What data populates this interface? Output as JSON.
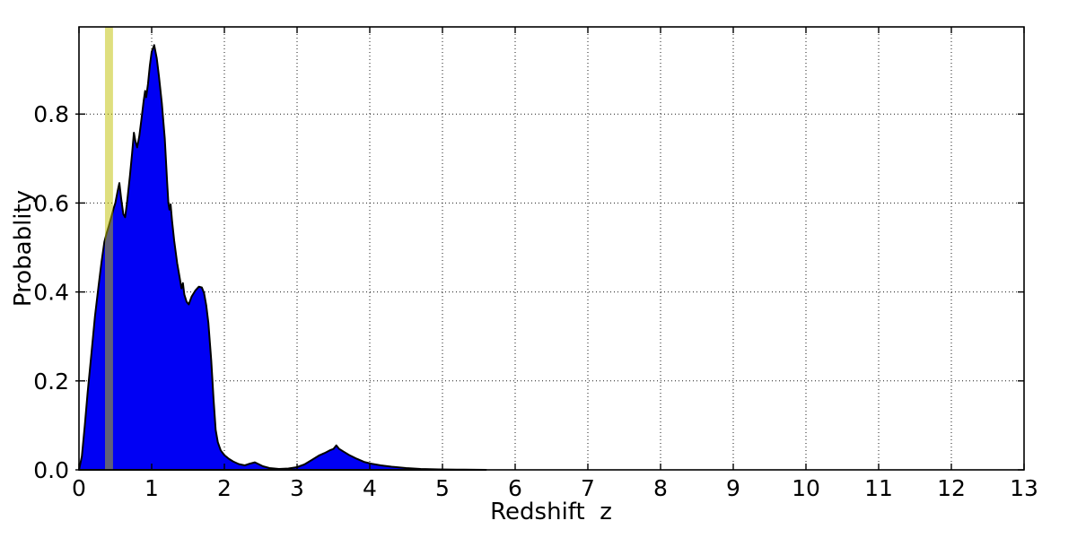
{
  "chart_data": {
    "type": "area",
    "title": "",
    "xlabel": "Redshift  z",
    "ylabel": "Probablity",
    "xlim": [
      0,
      13
    ],
    "ylim": [
      0,
      0.996
    ],
    "xticks": [
      0,
      1,
      2,
      3,
      4,
      5,
      6,
      7,
      8,
      9,
      10,
      11,
      12,
      13
    ],
    "yticks": [
      {
        "value": 0.0,
        "label": "0.0"
      },
      {
        "value": 0.2,
        "label": "0.2"
      },
      {
        "value": 0.4,
        "label": "0.4"
      },
      {
        "value": 0.6,
        "label": "0.6"
      },
      {
        "value": 0.8,
        "label": "0.8"
      }
    ],
    "grid": {
      "show": true,
      "style": "dotted",
      "color": "#000000"
    },
    "colors": {
      "background": "#ffffff",
      "axes": "#000000",
      "pdf_fill": "#0000f4",
      "pdf_edge": "#000000",
      "vspan": "#bfbf00"
    },
    "legend": null,
    "annotations": [
      {
        "name": "reference-redshift-vspan",
        "type": "vspan",
        "x0": 0.358,
        "x1": 0.468,
        "color": "#bfbf00",
        "opacity": 0.5
      }
    ],
    "series": [
      {
        "name": "redshift-probability-pdf",
        "type": "filled-line",
        "fill_color": "#0000f4",
        "edge_color": "#000000",
        "points": [
          [
            0.0,
            0.0
          ],
          [
            0.04,
            0.03
          ],
          [
            0.08,
            0.1
          ],
          [
            0.12,
            0.175
          ],
          [
            0.17,
            0.26
          ],
          [
            0.22,
            0.345
          ],
          [
            0.27,
            0.415
          ],
          [
            0.31,
            0.467
          ],
          [
            0.35,
            0.513
          ],
          [
            0.38,
            0.532
          ],
          [
            0.41,
            0.548
          ],
          [
            0.45,
            0.572
          ],
          [
            0.48,
            0.59
          ],
          [
            0.5,
            0.6
          ],
          [
            0.53,
            0.625
          ],
          [
            0.555,
            0.645
          ],
          [
            0.58,
            0.61
          ],
          [
            0.61,
            0.575
          ],
          [
            0.635,
            0.568
          ],
          [
            0.66,
            0.6
          ],
          [
            0.7,
            0.66
          ],
          [
            0.73,
            0.71
          ],
          [
            0.755,
            0.758
          ],
          [
            0.775,
            0.74
          ],
          [
            0.8,
            0.725
          ],
          [
            0.83,
            0.75
          ],
          [
            0.86,
            0.79
          ],
          [
            0.89,
            0.83
          ],
          [
            0.91,
            0.852
          ],
          [
            0.925,
            0.838
          ],
          [
            0.95,
            0.868
          ],
          [
            0.975,
            0.91
          ],
          [
            1.0,
            0.94
          ],
          [
            1.035,
            0.955
          ],
          [
            1.07,
            0.925
          ],
          [
            1.1,
            0.885
          ],
          [
            1.14,
            0.825
          ],
          [
            1.18,
            0.745
          ],
          [
            1.21,
            0.655
          ],
          [
            1.23,
            0.6
          ],
          [
            1.245,
            0.585
          ],
          [
            1.26,
            0.597
          ],
          [
            1.28,
            0.56
          ],
          [
            1.31,
            0.515
          ],
          [
            1.35,
            0.465
          ],
          [
            1.385,
            0.432
          ],
          [
            1.41,
            0.408
          ],
          [
            1.43,
            0.42
          ],
          [
            1.45,
            0.394
          ],
          [
            1.48,
            0.378
          ],
          [
            1.51,
            0.372
          ],
          [
            1.55,
            0.39
          ],
          [
            1.6,
            0.403
          ],
          [
            1.65,
            0.412
          ],
          [
            1.69,
            0.41
          ],
          [
            1.72,
            0.398
          ],
          [
            1.75,
            0.37
          ],
          [
            1.78,
            0.33
          ],
          [
            1.82,
            0.245
          ],
          [
            1.85,
            0.16
          ],
          [
            1.88,
            0.09
          ],
          [
            1.91,
            0.062
          ],
          [
            1.95,
            0.044
          ],
          [
            2.0,
            0.033
          ],
          [
            2.06,
            0.025
          ],
          [
            2.12,
            0.019
          ],
          [
            2.2,
            0.013
          ],
          [
            2.28,
            0.01
          ],
          [
            2.35,
            0.014
          ],
          [
            2.42,
            0.017
          ],
          [
            2.47,
            0.013
          ],
          [
            2.53,
            0.008
          ],
          [
            2.62,
            0.004
          ],
          [
            2.75,
            0.002
          ],
          [
            2.88,
            0.003
          ],
          [
            3.0,
            0.006
          ],
          [
            3.1,
            0.012
          ],
          [
            3.2,
            0.022
          ],
          [
            3.3,
            0.032
          ],
          [
            3.38,
            0.038
          ],
          [
            3.45,
            0.044
          ],
          [
            3.5,
            0.047
          ],
          [
            3.54,
            0.055
          ],
          [
            3.58,
            0.047
          ],
          [
            3.64,
            0.041
          ],
          [
            3.72,
            0.033
          ],
          [
            3.82,
            0.025
          ],
          [
            3.92,
            0.018
          ],
          [
            4.02,
            0.014
          ],
          [
            4.15,
            0.01
          ],
          [
            4.3,
            0.007
          ],
          [
            4.5,
            0.004
          ],
          [
            4.7,
            0.002
          ],
          [
            4.95,
            0.001
          ],
          [
            5.3,
            0.0005
          ],
          [
            5.6,
            0.0
          ]
        ]
      }
    ]
  }
}
